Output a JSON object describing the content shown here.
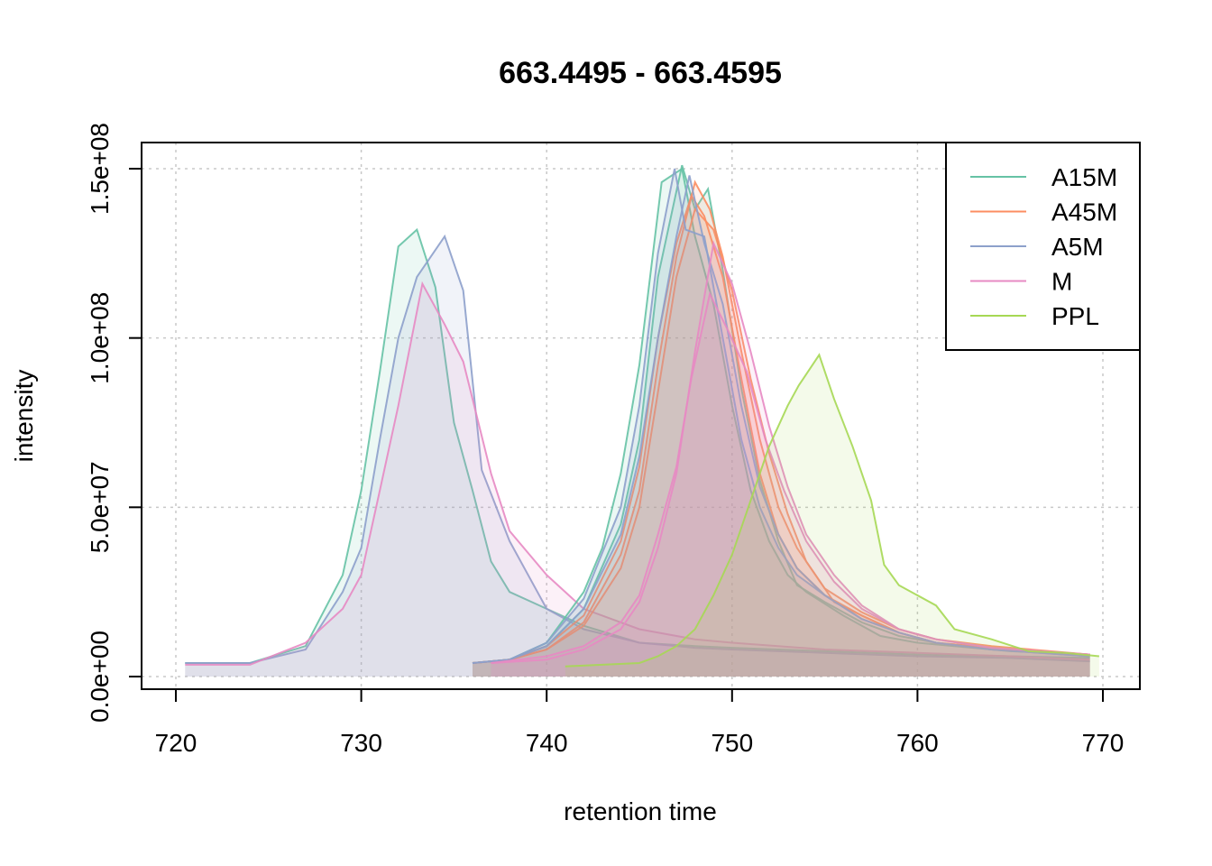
{
  "chart_data": {
    "type": "line",
    "title": "663.4495 - 663.4595",
    "xlabel": "retention time",
    "ylabel": "intensity",
    "xlim": [
      720,
      770
    ],
    "ylim": [
      0,
      150000000
    ],
    "x_ticks": [
      720,
      730,
      740,
      750,
      760,
      770
    ],
    "x_tick_labels": [
      "720",
      "730",
      "740",
      "750",
      "760",
      "770"
    ],
    "y_ticks": [
      0,
      50000000,
      100000000,
      150000000
    ],
    "y_tick_labels": [
      "0.0e+00",
      "5.0e+07",
      "1.0e+08",
      "1.5e+08"
    ],
    "grid": true,
    "legend_position": "top-right",
    "groups": [
      {
        "name": "A15M",
        "color": "#66c2a5"
      },
      {
        "name": "A45M",
        "color": "#fc8d62"
      },
      {
        "name": "A5M",
        "color": "#8da0cb"
      },
      {
        "name": "M",
        "color": "#e78ac3"
      },
      {
        "name": "PPL",
        "color": "#a6d854"
      }
    ],
    "series": [
      {
        "group": "A15M",
        "x": [
          720.5,
          724,
          727,
          729,
          730,
          731,
          732,
          733,
          734,
          735,
          736,
          737,
          738,
          740,
          742,
          745,
          748,
          750,
          755,
          760,
          765,
          769.3
        ],
        "values": [
          4000000,
          4000000,
          9000000,
          30000000,
          55000000,
          90000000,
          127000000,
          132000000,
          115000000,
          75000000,
          55000000,
          34000000,
          25000000,
          20000000,
          15000000,
          10000000,
          9000000,
          8500000,
          7500000,
          6500000,
          6000000,
          5500000
        ]
      },
      {
        "group": "A5M",
        "x": [
          720.5,
          724,
          727,
          729,
          730,
          731,
          732,
          733,
          734.5,
          735.5,
          736.5,
          738,
          740,
          742,
          745,
          748,
          750,
          755,
          760,
          765,
          769.3
        ],
        "values": [
          4000000,
          4000000,
          8000000,
          25000000,
          38000000,
          70000000,
          100000000,
          118000000,
          130000000,
          114000000,
          61000000,
          40000000,
          20000000,
          14000000,
          10000000,
          8500000,
          8000000,
          7000000,
          6000000,
          5500000,
          4500000
        ]
      },
      {
        "group": "M",
        "x": [
          720.5,
          724,
          727,
          729,
          730,
          731,
          732,
          733.3,
          734.5,
          735.5,
          737,
          738,
          740,
          742,
          745,
          748,
          750,
          755,
          760,
          765,
          769.3
        ],
        "values": [
          3500000,
          3500000,
          10000000,
          20000000,
          30000000,
          55000000,
          80000000,
          116000000,
          104000000,
          93000000,
          60000000,
          43000000,
          30000000,
          20000000,
          14000000,
          11000000,
          10000000,
          8000000,
          7000000,
          6000000,
          5000000
        ]
      },
      {
        "group": "A15M",
        "x": [
          736,
          738,
          740,
          742,
          743,
          744,
          745,
          746.2,
          747.3,
          748,
          749,
          750,
          751,
          752,
          753,
          754,
          756,
          758,
          760,
          762,
          765,
          769.3
        ],
        "values": [
          4000000,
          5000000,
          10000000,
          25000000,
          38000000,
          60000000,
          92000000,
          146000000,
          150000000,
          130000000,
          110000000,
          80000000,
          55000000,
          40000000,
          30000000,
          25000000,
          18000000,
          12000000,
          10000000,
          9000000,
          7500000,
          6500000
        ]
      },
      {
        "group": "A15M",
        "x": [
          736,
          738,
          740,
          742,
          744,
          745,
          746,
          747.3,
          748,
          748.7,
          749.5,
          750.5,
          751.5,
          752.5,
          753.5,
          755,
          757,
          759,
          761,
          764,
          769.3
        ],
        "values": [
          4000000,
          5000000,
          9000000,
          20000000,
          45000000,
          70000000,
          118000000,
          151000000,
          138000000,
          144000000,
          120000000,
          85000000,
          58000000,
          40000000,
          27000000,
          22000000,
          16000000,
          12000000,
          10000000,
          8000000,
          6500000
        ]
      },
      {
        "group": "A45M",
        "x": [
          736,
          738,
          740,
          742,
          744,
          745,
          746,
          747,
          747.8,
          748.5,
          749.5,
          750.5,
          751.5,
          752.5,
          753.5,
          755,
          757,
          759,
          761,
          764,
          769.3
        ],
        "values": [
          4000000,
          5000000,
          9000000,
          18000000,
          40000000,
          62000000,
          100000000,
          128000000,
          142000000,
          136000000,
          118000000,
          88000000,
          60000000,
          42000000,
          32000000,
          24000000,
          18000000,
          13000000,
          10000000,
          8500000,
          6500000
        ]
      },
      {
        "group": "A45M",
        "x": [
          736,
          738,
          740,
          742,
          744,
          745,
          746,
          747,
          748,
          748.8,
          749.5,
          750.5,
          751.5,
          752.5,
          753.5,
          755,
          757,
          759,
          761,
          764,
          769.3
        ],
        "values": [
          4000000,
          5000000,
          8000000,
          16000000,
          36000000,
          55000000,
          92000000,
          124000000,
          146000000,
          138000000,
          124000000,
          96000000,
          70000000,
          50000000,
          38000000,
          26000000,
          19000000,
          14000000,
          11000000,
          9000000,
          6500000
        ]
      },
      {
        "group": "A45M",
        "x": [
          736,
          738,
          740,
          742,
          744,
          745,
          746,
          747,
          748,
          749,
          750,
          751,
          752,
          753,
          754,
          755.5,
          757,
          759,
          761,
          764,
          769.3
        ],
        "values": [
          4000000,
          5000000,
          8000000,
          15000000,
          32000000,
          50000000,
          84000000,
          118000000,
          138000000,
          132000000,
          114000000,
          88000000,
          66000000,
          48000000,
          34000000,
          22000000,
          18000000,
          13000000,
          10000000,
          8500000,
          6000000
        ]
      },
      {
        "group": "A5M",
        "x": [
          736,
          738,
          740,
          742,
          744,
          745,
          746,
          746.9,
          747.5,
          748.5,
          749.5,
          750.5,
          751.5,
          752.5,
          753.5,
          755,
          757,
          759,
          761,
          764,
          769.3
        ],
        "values": [
          4000000,
          5000000,
          10000000,
          23000000,
          50000000,
          80000000,
          125000000,
          150000000,
          132000000,
          130000000,
          100000000,
          70000000,
          50000000,
          38000000,
          30000000,
          24000000,
          17000000,
          13000000,
          10000000,
          8000000,
          6000000
        ]
      },
      {
        "group": "A5M",
        "x": [
          736,
          738,
          740,
          742,
          744,
          745,
          746,
          747,
          747.7,
          748.5,
          749.5,
          750.5,
          751.5,
          752.5,
          753.5,
          755,
          757,
          759,
          761,
          764,
          769.3
        ],
        "values": [
          4000000,
          5000000,
          9000000,
          20000000,
          42000000,
          65000000,
          100000000,
          130000000,
          148000000,
          128000000,
          110000000,
          80000000,
          56000000,
          42000000,
          32000000,
          24000000,
          17000000,
          13000000,
          10000000,
          8000000,
          6000000
        ]
      },
      {
        "group": "M",
        "x": [
          737,
          740,
          742,
          744,
          745,
          746,
          747,
          747.8,
          748.8,
          749.8,
          750.8,
          751.8,
          752.8,
          754,
          755.5,
          757,
          759,
          761,
          764,
          769.3
        ],
        "values": [
          4000000,
          6000000,
          9000000,
          16000000,
          24000000,
          42000000,
          62000000,
          88000000,
          113000000,
          102000000,
          90000000,
          70000000,
          55000000,
          40000000,
          28000000,
          20000000,
          14000000,
          11000000,
          8500000,
          6500000
        ]
      },
      {
        "group": "M",
        "x": [
          737,
          740,
          742,
          744,
          745,
          746,
          747,
          748,
          749,
          750,
          751,
          752,
          753,
          754,
          755.5,
          757,
          759,
          761,
          764,
          769.3
        ],
        "values": [
          4000000,
          5000000,
          8000000,
          14000000,
          22000000,
          38000000,
          60000000,
          96000000,
          128000000,
          116000000,
          96000000,
          74000000,
          56000000,
          42000000,
          30000000,
          21000000,
          14000000,
          11000000,
          8500000,
          6500000
        ]
      },
      {
        "group": "PPL",
        "x": [
          741,
          743,
          745,
          746,
          747,
          748,
          749,
          750,
          751,
          752,
          753,
          753.6,
          754.7,
          755.5,
          756.5,
          757.5,
          758.2,
          759,
          761,
          762,
          764,
          766,
          768,
          769.8
        ],
        "values": [
          3000000,
          3500000,
          4000000,
          6000000,
          9000000,
          14000000,
          24000000,
          36000000,
          52000000,
          68000000,
          80000000,
          86000000,
          95000000,
          82000000,
          68000000,
          52000000,
          33000000,
          27000000,
          21000000,
          14000000,
          11000000,
          7500000,
          7000000,
          6000000
        ]
      }
    ]
  }
}
